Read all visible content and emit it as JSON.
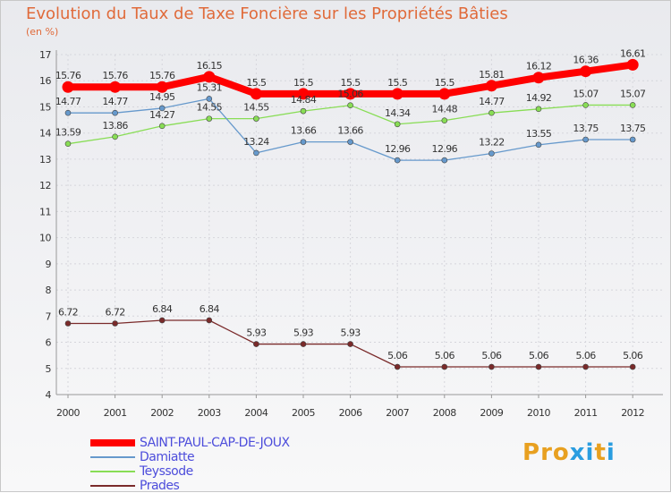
{
  "header": {
    "title": "Evolution du Taux de Taxe Foncière sur les Propriétés Bâties",
    "subtitle": "(en %)"
  },
  "branding": {
    "logo_text": "Proxiti",
    "logo_colors": [
      "#e8a020",
      "#e8a020",
      "#e8a020",
      "#2a9de0",
      "#2a9de0",
      "#e8a020",
      "#2a9de0"
    ]
  },
  "chart_data": {
    "type": "line",
    "title": "Evolution du Taux de Taxe Foncière sur les Propriétés Bâties",
    "ylabel": "(en %)",
    "xlabel": "",
    "x": [
      "2000",
      "2001",
      "2002",
      "2003",
      "2004",
      "2005",
      "2006",
      "2007",
      "2008",
      "2009",
      "2010",
      "2011",
      "2012"
    ],
    "ylim": [
      4,
      17
    ],
    "yticks": [
      "4",
      "5",
      "6",
      "7",
      "8",
      "9",
      "10",
      "11",
      "12",
      "13",
      "14",
      "15",
      "16",
      "17"
    ],
    "grid": true,
    "legend_position": "bottom-left",
    "series": [
      {
        "name": "SAINT-PAUL-CAP-DE-JOUX",
        "color": "#ff0000",
        "values": [
          15.76,
          15.76,
          15.76,
          16.15,
          15.5,
          15.5,
          15.5,
          15.5,
          15.5,
          15.81,
          16.12,
          16.36,
          16.61
        ],
        "labels": [
          "15.76",
          "15.76",
          "15.76",
          "16.15",
          "15.5",
          "15.5",
          "15.5",
          "15.5",
          "15.5",
          "15.81",
          "16.12",
          "16.36",
          "16.61"
        ]
      },
      {
        "name": "Damiatte",
        "color": "#6699cc",
        "values": [
          14.77,
          14.77,
          14.95,
          15.31,
          13.24,
          13.66,
          13.66,
          12.96,
          12.96,
          13.22,
          13.55,
          13.75,
          13.75
        ],
        "labels": [
          "14.77",
          "14.77",
          "14.95",
          "15.31",
          "13.24",
          "13.66",
          "13.66",
          "12.96",
          "12.96",
          "13.22",
          "13.55",
          "13.75",
          "13.75"
        ]
      },
      {
        "name": "Teyssode",
        "color": "#88dd55",
        "values": [
          13.59,
          13.86,
          14.27,
          14.55,
          14.55,
          14.84,
          15.06,
          14.34,
          14.48,
          14.77,
          14.92,
          15.07,
          15.07
        ],
        "labels": [
          "13.59",
          "13.86",
          "14.27",
          "14.55",
          "14.55",
          "14.84",
          "15.06",
          "14.34",
          "14.48",
          "14.77",
          "14.92",
          "15.07",
          "15.07"
        ]
      },
      {
        "name": "Prades",
        "color": "#7a2a2a",
        "values": [
          6.72,
          6.72,
          6.84,
          6.84,
          5.93,
          5.93,
          5.93,
          5.06,
          5.06,
          5.06,
          5.06,
          5.06,
          5.06
        ],
        "labels": [
          "6.72",
          "6.72",
          "6.84",
          "6.84",
          "5.93",
          "5.93",
          "5.93",
          "5.06",
          "5.06",
          "5.06",
          "5.06",
          "5.06",
          "5.06"
        ]
      }
    ]
  }
}
